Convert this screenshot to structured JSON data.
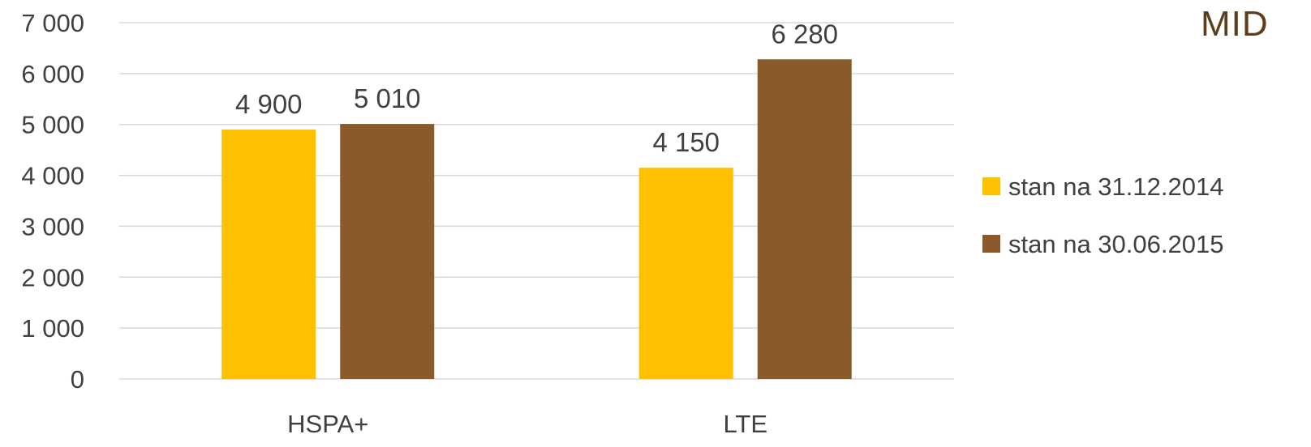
{
  "chart_data": {
    "type": "bar",
    "title": "",
    "partial_heading": "MID",
    "categories": [
      "HSPA+",
      "LTE"
    ],
    "series": [
      {
        "name": "stan na 31.12.2014",
        "color": "#FFC000",
        "values": [
          4900,
          4150
        ],
        "labels": [
          "4 900",
          "4 150"
        ]
      },
      {
        "name": "stan na 30.06.2015",
        "color": "#8B5A2B",
        "values": [
          5010,
          6280
        ],
        "labels": [
          "5 010",
          "6 280"
        ]
      }
    ],
    "ylim": [
      0,
      7000
    ],
    "yticks": [
      0,
      1000,
      2000,
      3000,
      4000,
      5000,
      6000,
      7000
    ],
    "ytick_labels": [
      "0",
      "1 000",
      "2 000",
      "3 000",
      "4 000",
      "5 000",
      "6 000",
      "7 000"
    ],
    "grid": true,
    "gridline_color": "#d9d9d9",
    "legend_position": "right",
    "xlabel": "",
    "ylabel": ""
  }
}
